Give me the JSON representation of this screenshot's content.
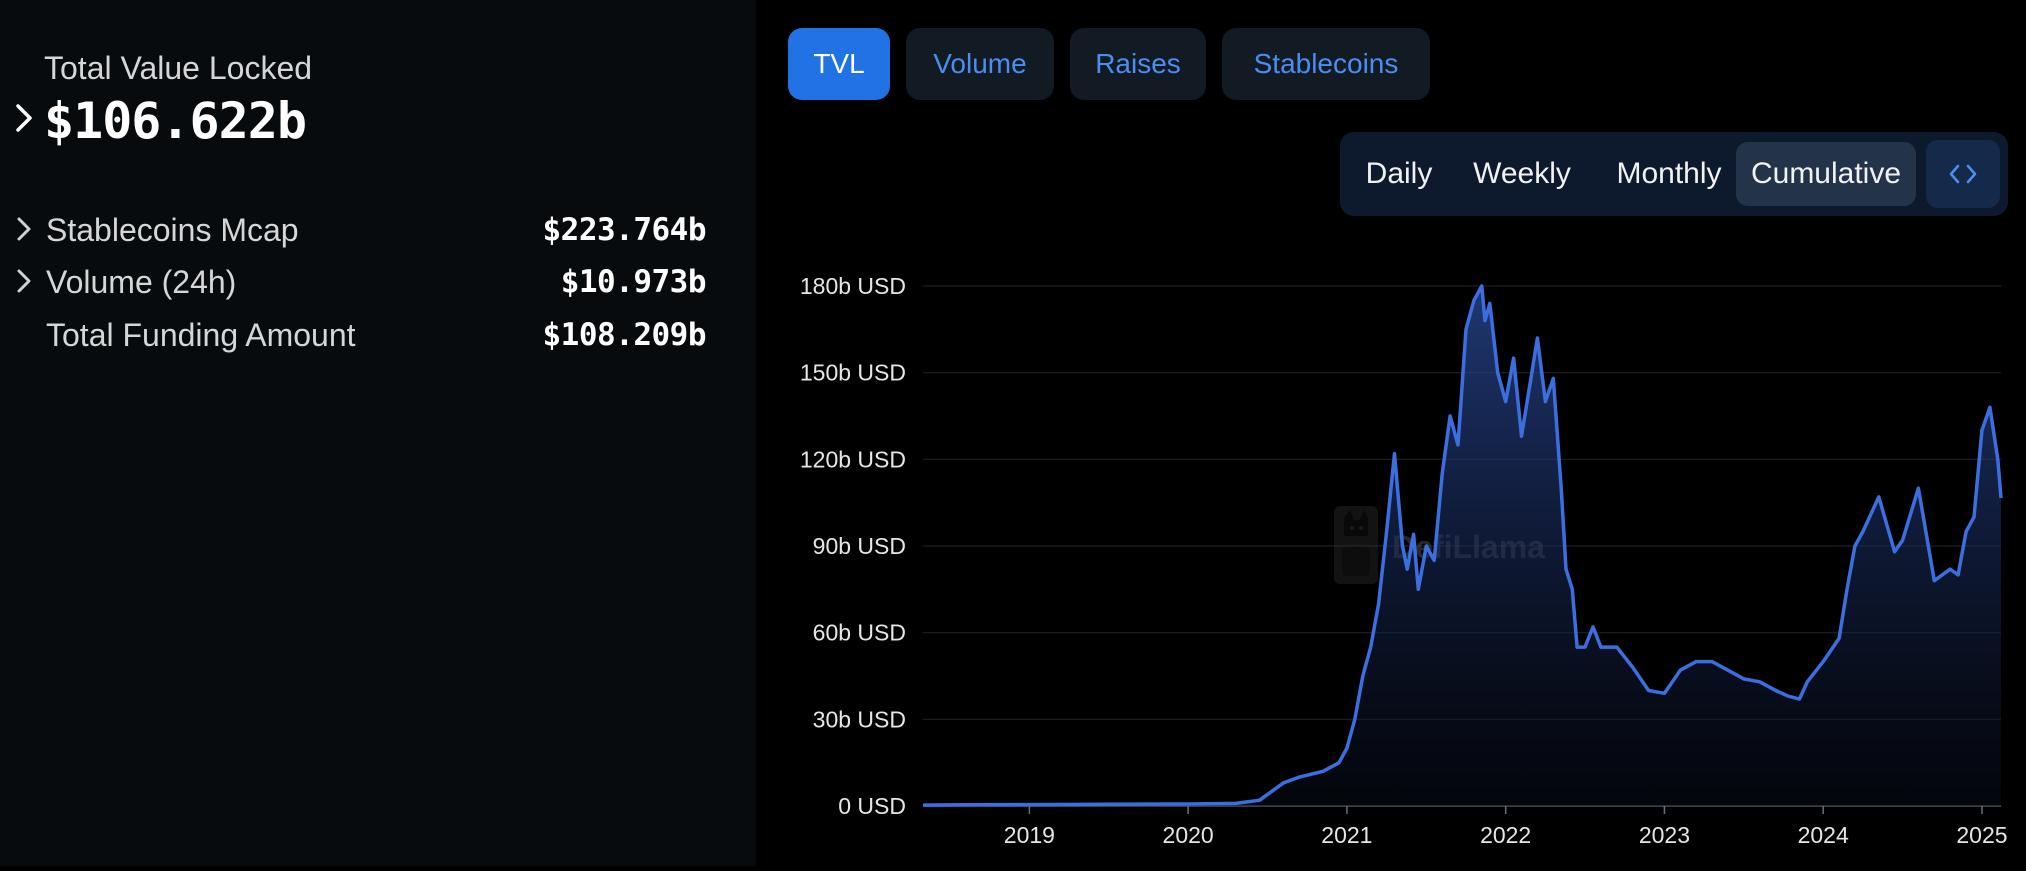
{
  "summary": {
    "tvl_label": "Total Value Locked",
    "tvl_value": "$106.622b",
    "stats": [
      {
        "label": "Stablecoins Mcap",
        "value": "$223.764b",
        "expandable": true
      },
      {
        "label": "Volume (24h)",
        "value": "$10.973b",
        "expandable": true
      },
      {
        "label": "Total Funding Amount",
        "value": "$108.209b",
        "expandable": false
      }
    ]
  },
  "tabs": [
    {
      "label": "TVL",
      "active": true
    },
    {
      "label": "Volume",
      "active": false
    },
    {
      "label": "Raises",
      "active": false
    },
    {
      "label": "Stablecoins",
      "active": false
    }
  ],
  "periods": [
    {
      "label": "Daily",
      "active": false
    },
    {
      "label": "Weekly",
      "active": false
    },
    {
      "label": "Monthly",
      "active": false
    },
    {
      "label": "Cumulative",
      "active": true
    }
  ],
  "embed_icon": "code-brackets-icon",
  "watermark": "DefiLlama",
  "colors": {
    "accent": "#2172e5",
    "line": "#3b6fe0",
    "tab_text": "#4b8ef0",
    "left_panel_bg": "#070b0d"
  },
  "chart_data": {
    "type": "area",
    "title": "",
    "xlabel": "",
    "ylabel": "",
    "y_tick_labels": [
      "0 USD",
      "30b USD",
      "60b USD",
      "90b USD",
      "120b USD",
      "150b USD",
      "180b USD"
    ],
    "y_ticks": [
      0,
      30,
      60,
      90,
      120,
      150,
      180
    ],
    "ylim": [
      0,
      180
    ],
    "y_unit": "billion USD",
    "x_tick_labels": [
      "2019",
      "2020",
      "2021",
      "2022",
      "2023",
      "2024",
      "2025"
    ],
    "x_ticks": [
      2019,
      2020,
      2021,
      2022,
      2023,
      2024,
      2025
    ],
    "xlim": [
      2018.33,
      2025.12
    ],
    "grid": true,
    "series": [
      {
        "x": [
          2018.33,
          2018.6,
          2019.0,
          2019.5,
          2020.0,
          2020.3,
          2020.45,
          2020.6,
          2020.7,
          2020.85,
          2020.95,
          2021.0,
          2021.05,
          2021.1,
          2021.15,
          2021.2,
          2021.25,
          2021.3,
          2021.35,
          2021.38,
          2021.42,
          2021.45,
          2021.5,
          2021.55,
          2021.6,
          2021.65,
          2021.7,
          2021.75,
          2021.8,
          2021.85,
          2021.87,
          2021.9,
          2021.95,
          2022.0,
          2022.05,
          2022.1,
          2022.15,
          2022.2,
          2022.25,
          2022.3,
          2022.35,
          2022.38,
          2022.42,
          2022.45,
          2022.5,
          2022.55,
          2022.6,
          2022.7,
          2022.8,
          2022.9,
          2023.0,
          2023.05,
          2023.1,
          2023.2,
          2023.3,
          2023.4,
          2023.5,
          2023.6,
          2023.7,
          2023.78,
          2023.85,
          2023.9,
          2024.0,
          2024.1,
          2024.15,
          2024.2,
          2024.25,
          2024.35,
          2024.45,
          2024.5,
          2024.6,
          2024.7,
          2024.8,
          2024.85,
          2024.9,
          2024.95,
          2025.0,
          2025.05,
          2025.1,
          2025.12
        ],
        "y": [
          0.3,
          0.4,
          0.5,
          0.6,
          0.7,
          0.9,
          2,
          8,
          10,
          12,
          15,
          20,
          30,
          45,
          55,
          70,
          95,
          122,
          90,
          82,
          94,
          75,
          90,
          85,
          115,
          135,
          125,
          165,
          175,
          180,
          168,
          174,
          150,
          140,
          155,
          128,
          145,
          162,
          140,
          148,
          110,
          82,
          75,
          55,
          55,
          62,
          55,
          55,
          48,
          40,
          39,
          43,
          47,
          50,
          50,
          47,
          44,
          43,
          40,
          38,
          37,
          43,
          50,
          58,
          75,
          90,
          95,
          107,
          88,
          92,
          110,
          78,
          82,
          80,
          95,
          100,
          130,
          138,
          120,
          106.6
        ]
      }
    ]
  }
}
